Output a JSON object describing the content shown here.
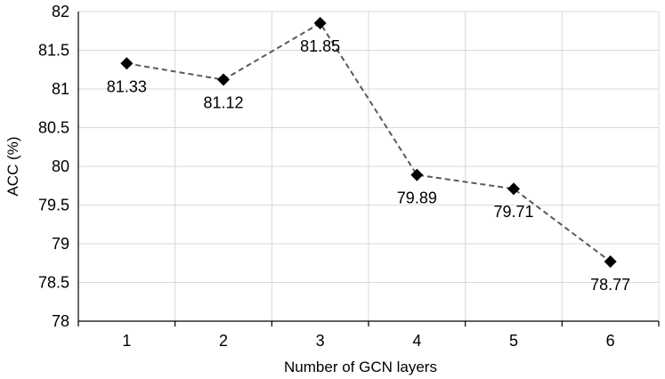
{
  "chart_data": {
    "type": "line",
    "title": "",
    "xlabel": "Number of GCN layers",
    "ylabel": "ACC (%)",
    "x": [
      1,
      2,
      3,
      4,
      5,
      6
    ],
    "series": [
      {
        "values": [
          81.33,
          81.12,
          81.85,
          79.89,
          79.71,
          78.77
        ]
      }
    ],
    "data_labels": [
      "81.33",
      "81.12",
      "81.85",
      "79.89",
      "79.71",
      "78.77"
    ],
    "ylim": [
      78,
      82
    ],
    "yticks": [
      "78",
      "78.5",
      "79",
      "79.5",
      "80",
      "80.5",
      "81",
      "81.5",
      "82"
    ],
    "xticks": [
      "1",
      "2",
      "3",
      "4",
      "5",
      "6"
    ],
    "grid": true,
    "legend": "none",
    "colors": {
      "line": "#595959",
      "marker": "#000000",
      "grid": "#d9d9d9"
    },
    "line_style": "dashed",
    "marker": "diamond"
  }
}
